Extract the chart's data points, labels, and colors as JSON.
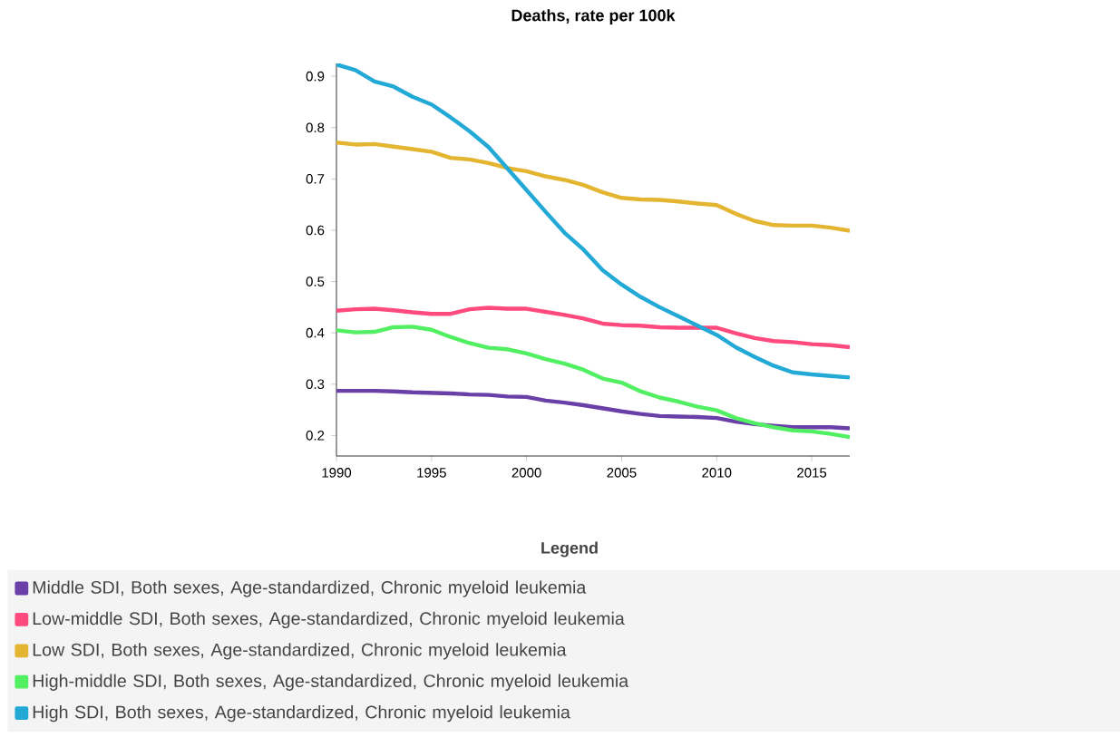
{
  "chart_data": {
    "type": "line",
    "title": "Deaths, rate per 100k",
    "legend_title": "Legend",
    "legend": "bottom",
    "x": [
      1990,
      1991,
      1992,
      1993,
      1994,
      1995,
      1996,
      1997,
      1998,
      1999,
      2000,
      2001,
      2002,
      2003,
      2004,
      2005,
      2006,
      2007,
      2008,
      2009,
      2010,
      2011,
      2012,
      2013,
      2014,
      2015,
      2016,
      2017
    ],
    "xlim": [
      1990,
      2017
    ],
    "xticks": [
      1990,
      1995,
      2000,
      2005,
      2010,
      2015
    ],
    "ylim": [
      0.16,
      0.925
    ],
    "yticks": [
      0.2,
      0.3,
      0.4,
      0.5,
      0.6,
      0.7,
      0.8,
      0.9
    ],
    "series": [
      {
        "name": "Middle SDI, Both sexes, Age-standardized, Chronic myeloid leukemia",
        "color": "#6a3fa8",
        "values": [
          0.287,
          0.287,
          0.287,
          0.286,
          0.284,
          0.283,
          0.282,
          0.28,
          0.279,
          0.276,
          0.275,
          0.268,
          0.264,
          0.259,
          0.253,
          0.247,
          0.242,
          0.238,
          0.237,
          0.236,
          0.234,
          0.227,
          0.222,
          0.219,
          0.216,
          0.216,
          0.216,
          0.214
        ]
      },
      {
        "name": "Low-middle SDI, Both sexes, Age-standardized, Chronic myeloid leukemia",
        "color": "#ff4a7d",
        "values": [
          0.443,
          0.446,
          0.447,
          0.444,
          0.44,
          0.437,
          0.437,
          0.446,
          0.449,
          0.447,
          0.447,
          0.441,
          0.435,
          0.428,
          0.418,
          0.415,
          0.414,
          0.411,
          0.41,
          0.41,
          0.41,
          0.399,
          0.39,
          0.384,
          0.382,
          0.378,
          0.376,
          0.372
        ]
      },
      {
        "name": "Low SDI, Both sexes, Age-standardized, Chronic myeloid leukemia",
        "color": "#e3b530",
        "values": [
          0.771,
          0.767,
          0.768,
          0.763,
          0.758,
          0.753,
          0.741,
          0.738,
          0.731,
          0.721,
          0.715,
          0.705,
          0.698,
          0.688,
          0.674,
          0.663,
          0.66,
          0.659,
          0.656,
          0.652,
          0.649,
          0.632,
          0.618,
          0.61,
          0.609,
          0.609,
          0.605,
          0.599
        ]
      },
      {
        "name": "High-middle SDI, Both sexes, Age-standardized, Chronic myeloid leukemia",
        "color": "#52ef62",
        "values": [
          0.405,
          0.401,
          0.402,
          0.411,
          0.412,
          0.406,
          0.392,
          0.38,
          0.371,
          0.368,
          0.36,
          0.349,
          0.34,
          0.328,
          0.311,
          0.303,
          0.286,
          0.274,
          0.266,
          0.256,
          0.249,
          0.234,
          0.224,
          0.216,
          0.21,
          0.208,
          0.203,
          0.197
        ]
      },
      {
        "name": "High SDI, Both sexes, Age-standardized, Chronic myeloid leukemia",
        "color": "#22a9d6",
        "values": [
          0.923,
          0.912,
          0.89,
          0.88,
          0.86,
          0.845,
          0.82,
          0.793,
          0.762,
          0.72,
          0.678,
          0.636,
          0.595,
          0.562,
          0.522,
          0.494,
          0.47,
          0.45,
          0.432,
          0.414,
          0.396,
          0.372,
          0.353,
          0.336,
          0.323,
          0.319,
          0.316,
          0.313
        ]
      }
    ]
  }
}
